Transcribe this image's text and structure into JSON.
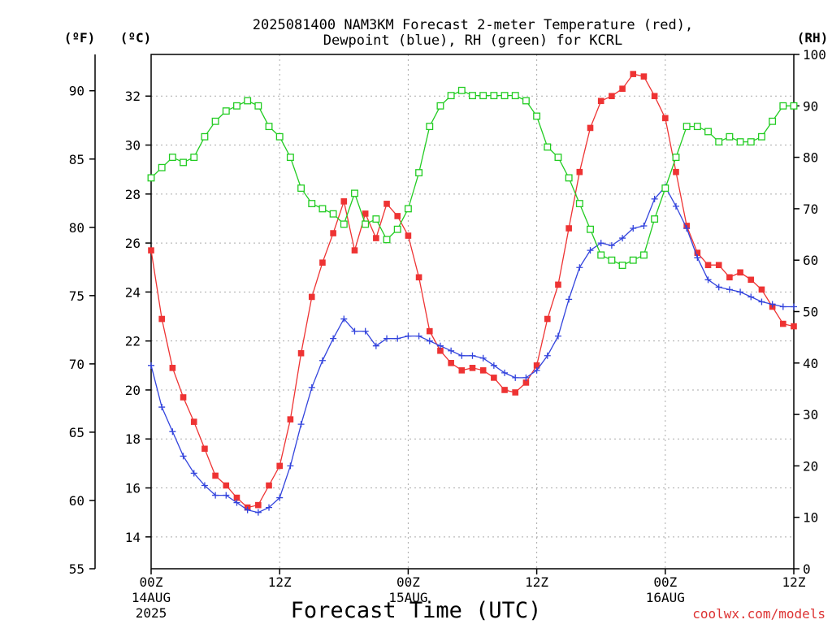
{
  "chart_data": {
    "type": "line",
    "title_line1": "2025081400 NAM3KM Forecast 2-meter Temperature (red),",
    "title_line2": "Dewpoint (blue), RH (green) for KCRL",
    "xlabel": "Forecast Time (UTC)",
    "unit_f": "(ºF)",
    "unit_c": "(ºC)",
    "unit_rh": "(RH)",
    "credit": "coolwx.com/models",
    "x_range": [
      0,
      60
    ],
    "ylim_c": [
      12.7,
      33.7
    ],
    "ylim_f": [
      55,
      92.66
    ],
    "ylim_rh": [
      0,
      100
    ],
    "grid": true,
    "y_ticks_c": [
      14,
      16,
      18,
      20,
      22,
      24,
      26,
      28,
      30,
      32
    ],
    "y_ticks_f": [
      55,
      60,
      65,
      70,
      75,
      80,
      85,
      90
    ],
    "y_ticks_rh": [
      0,
      10,
      20,
      30,
      40,
      50,
      60,
      70,
      80,
      90,
      100
    ],
    "x_ticks": [
      {
        "hour": 0,
        "label": "00Z",
        "sub1": "14AUG",
        "sub2": "2025"
      },
      {
        "hour": 12,
        "label": "12Z",
        "sub1": "",
        "sub2": ""
      },
      {
        "hour": 24,
        "label": "00Z",
        "sub1": "15AUG",
        "sub2": ""
      },
      {
        "hour": 36,
        "label": "12Z",
        "sub1": "",
        "sub2": ""
      },
      {
        "hour": 48,
        "label": "00Z",
        "sub1": "16AUG",
        "sub2": ""
      },
      {
        "hour": 60,
        "label": "12Z",
        "sub1": "",
        "sub2": ""
      }
    ],
    "x": [
      0,
      1,
      2,
      3,
      4,
      5,
      6,
      7,
      8,
      9,
      10,
      11,
      12,
      13,
      14,
      15,
      16,
      17,
      18,
      19,
      20,
      21,
      22,
      23,
      24,
      25,
      26,
      27,
      28,
      29,
      30,
      31,
      32,
      33,
      34,
      35,
      36,
      37,
      38,
      39,
      40,
      41,
      42,
      43,
      44,
      45,
      46,
      47,
      48,
      49,
      50,
      51,
      52,
      53,
      54,
      55,
      56,
      57,
      58,
      59,
      60
    ],
    "series": [
      {
        "name": "Temperature",
        "color": "#ee3333",
        "axis": "c",
        "marker": "filled-square",
        "values": [
          25.7,
          22.9,
          20.9,
          19.7,
          18.7,
          17.6,
          16.5,
          16.1,
          15.6,
          15.2,
          15.3,
          16.1,
          16.9,
          18.8,
          21.5,
          23.8,
          25.2,
          26.4,
          27.7,
          25.7,
          27.2,
          26.2,
          27.6,
          27.1,
          26.3,
          24.6,
          22.4,
          21.6,
          21.1,
          20.8,
          20.9,
          20.8,
          20.5,
          20.0,
          19.9,
          20.3,
          21.0,
          22.9,
          24.3,
          26.6,
          28.9,
          30.7,
          31.8,
          32.0,
          32.3,
          32.9,
          32.8,
          32.0,
          31.1,
          28.9,
          26.7,
          25.6,
          25.1,
          25.1,
          24.6,
          24.8,
          24.5,
          24.1,
          23.4,
          22.7,
          22.6
        ]
      },
      {
        "name": "Dewpoint",
        "color": "#3344dd",
        "axis": "c",
        "marker": "plus",
        "values": [
          21.0,
          19.3,
          18.3,
          17.3,
          16.6,
          16.1,
          15.7,
          15.7,
          15.4,
          15.1,
          15.0,
          15.2,
          15.6,
          16.9,
          18.6,
          20.1,
          21.2,
          22.1,
          22.9,
          22.4,
          22.4,
          21.8,
          22.1,
          22.1,
          22.2,
          22.2,
          22.0,
          21.8,
          21.6,
          21.4,
          21.4,
          21.3,
          21.0,
          20.7,
          20.5,
          20.5,
          20.8,
          21.4,
          22.2,
          23.7,
          25.0,
          25.7,
          26.0,
          25.9,
          26.2,
          26.6,
          26.7,
          27.8,
          28.3,
          27.5,
          26.6,
          25.4,
          24.5,
          24.2,
          24.1,
          24.0,
          23.8,
          23.6,
          23.5,
          23.4,
          23.4
        ]
      },
      {
        "name": "RH",
        "color": "#22cc22",
        "axis": "rh",
        "marker": "open-square",
        "values": [
          76,
          78,
          80,
          79,
          80,
          84,
          87,
          89,
          90,
          91,
          90,
          86,
          84,
          80,
          74,
          71,
          70,
          69,
          67,
          73,
          67,
          68,
          64,
          66,
          70,
          77,
          86,
          90,
          92,
          93,
          92,
          92,
          92,
          92,
          92,
          91,
          88,
          82,
          80,
          76,
          71,
          66,
          61,
          60,
          59,
          60,
          61,
          68,
          74,
          80,
          86,
          86,
          85,
          83,
          84,
          83,
          83,
          84,
          87,
          90,
          90
        ]
      }
    ]
  }
}
